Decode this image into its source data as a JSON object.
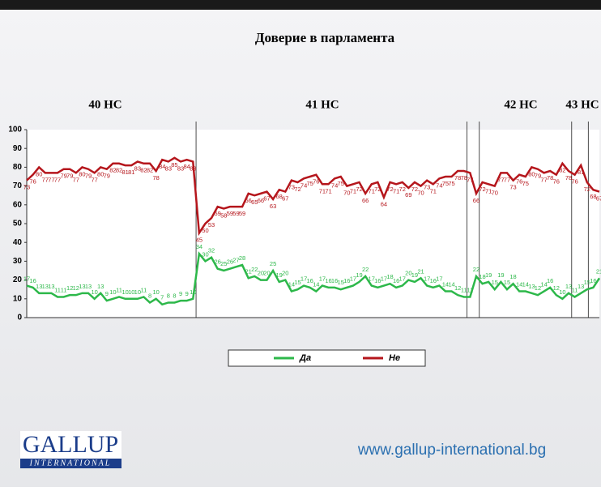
{
  "chart_data": {
    "type": "line",
    "title": "Доверие в парламента",
    "annotations": [
      "40 НС",
      "41 НС",
      "42 НС",
      "43 НС"
    ],
    "categories": [
      null,
      null,
      null,
      null,
      null,
      null,
      null,
      null,
      null,
      null,
      null,
      null,
      null,
      null,
      null,
      null,
      null,
      null,
      null,
      null,
      null,
      null,
      null,
      null,
      null,
      null,
      null,
      null,
      null,
      null,
      null,
      null,
      null,
      null,
      null,
      null,
      null,
      null,
      null,
      null,
      null,
      null,
      null,
      null,
      null,
      null,
      null,
      null,
      null,
      null,
      null,
      null,
      null,
      null,
      null,
      null,
      null,
      null,
      null,
      null,
      null,
      null,
      null,
      null,
      null,
      null,
      null,
      null,
      null,
      null,
      null,
      null,
      null,
      null,
      null,
      null,
      null,
      null,
      null,
      null,
      null,
      null,
      null,
      null,
      null,
      null,
      null,
      null,
      null,
      null,
      null,
      null,
      null,
      null
    ],
    "series": [
      {
        "name": "Да",
        "color": "#2db84a",
        "values": [
          17,
          16,
          13,
          13,
          13,
          11,
          11,
          12,
          12,
          13,
          13,
          10,
          13,
          9,
          10,
          11,
          10,
          10,
          10,
          11,
          8,
          10,
          7,
          8,
          8,
          9,
          9,
          10,
          34,
          30,
          32,
          26,
          25,
          26,
          27,
          28,
          21,
          22,
          20,
          20,
          25,
          19,
          20,
          14,
          15,
          17,
          16,
          14,
          17,
          16,
          16,
          15,
          16,
          17,
          19,
          22,
          17,
          16,
          17,
          18,
          16,
          17,
          20,
          19,
          21,
          17,
          16,
          17,
          14,
          14,
          12,
          11,
          11,
          22,
          18,
          19,
          15,
          19,
          15,
          18,
          14,
          14,
          13,
          12,
          14,
          16,
          12,
          10,
          13,
          11,
          13,
          15,
          16,
          21
        ]
      },
      {
        "name": "Не",
        "color": "#b5161c",
        "values": [
          73,
          76,
          80,
          77,
          77,
          77,
          79,
          79,
          77,
          80,
          79,
          77,
          80,
          79,
          82,
          82,
          81,
          81,
          83,
          82,
          82,
          78,
          84,
          83,
          85,
          83,
          84,
          83,
          45,
          50,
          53,
          59,
          58,
          59,
          59,
          59,
          66,
          65,
          66,
          67,
          63,
          68,
          67,
          73,
          72,
          74,
          75,
          76,
          71,
          71,
          74,
          75,
          70,
          71,
          72,
          66,
          71,
          72,
          64,
          72,
          71,
          72,
          69,
          72,
          70,
          73,
          71,
          74,
          75,
          75,
          78,
          78,
          77,
          66,
          72,
          71,
          70,
          77,
          77,
          73,
          76,
          75,
          80,
          79,
          77,
          78,
          76,
          82,
          78,
          76,
          81,
          72,
          68,
          67
        ]
      }
    ],
    "ylim": [
      0,
      100
    ],
    "yticks": [
      0,
      10,
      20,
      30,
      40,
      50,
      60,
      70,
      80,
      90,
      100
    ],
    "grid": false
  },
  "logo": {
    "name": "GALLUP",
    "sub": "INTERNATIONAL"
  },
  "url": "www.gallup-international.bg"
}
